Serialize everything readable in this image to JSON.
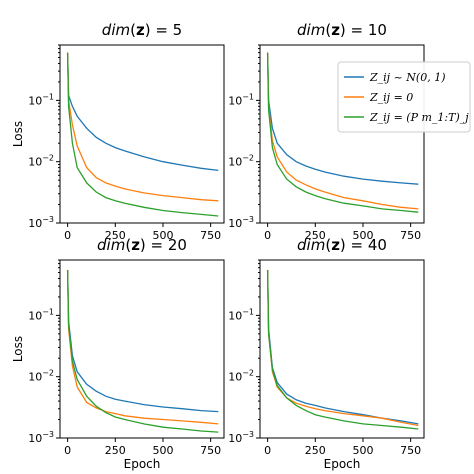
{
  "chart_data": [
    {
      "type": "line",
      "title": "dim(z) = 5",
      "xlabel": "",
      "ylabel": "Loss",
      "xlim": [
        -40,
        820
      ],
      "ylim": [
        0.001,
        0.8
      ],
      "yscale": "log",
      "xticks": [
        "0",
        "250",
        "500",
        "750"
      ],
      "yticks": [
        "10^-1",
        "10^-2",
        "10^-3"
      ],
      "series": [
        {
          "color": "#1f77b4",
          "x": [
            0,
            5,
            25,
            50,
            100,
            150,
            200,
            250,
            300,
            400,
            500,
            600,
            700,
            790
          ],
          "y": [
            0.6,
            0.12,
            0.08,
            0.055,
            0.035,
            0.025,
            0.02,
            0.017,
            0.015,
            0.012,
            0.01,
            0.0088,
            0.0078,
            0.0072
          ]
        },
        {
          "color": "#ff7f0e",
          "x": [
            0,
            5,
            25,
            50,
            100,
            150,
            200,
            250,
            300,
            400,
            500,
            600,
            700,
            790
          ],
          "y": [
            0.6,
            0.1,
            0.04,
            0.018,
            0.008,
            0.0055,
            0.0045,
            0.004,
            0.0036,
            0.0031,
            0.0028,
            0.0026,
            0.0024,
            0.0023
          ]
        },
        {
          "color": "#2ca02c",
          "x": [
            0,
            5,
            25,
            50,
            100,
            150,
            200,
            250,
            300,
            400,
            500,
            600,
            700,
            790
          ],
          "y": [
            0.6,
            0.08,
            0.02,
            0.008,
            0.0045,
            0.0032,
            0.0026,
            0.0023,
            0.0021,
            0.0018,
            0.0016,
            0.00148,
            0.00138,
            0.0013
          ]
        }
      ]
    },
    {
      "type": "line",
      "title": "dim(z) = 10",
      "xlabel": "",
      "ylabel": "",
      "xlim": [
        -40,
        820
      ],
      "ylim": [
        0.001,
        0.8
      ],
      "yscale": "log",
      "xticks": [
        "0",
        "250",
        "500",
        "750"
      ],
      "yticks": [
        "10^-1",
        "10^-2",
        "10^-3"
      ],
      "legend": {
        "position": "top-right",
        "entries": [
          "Z_ij ~ N(0, 1)",
          "Z_ij = 0",
          "Z_ij = (P m_1:T)_j"
        ]
      },
      "series": [
        {
          "color": "#1f77b4",
          "x": [
            0,
            5,
            25,
            50,
            100,
            150,
            200,
            250,
            300,
            400,
            500,
            600,
            700,
            790
          ],
          "y": [
            0.6,
            0.1,
            0.035,
            0.02,
            0.013,
            0.01,
            0.0085,
            0.0075,
            0.0068,
            0.0058,
            0.0052,
            0.0048,
            0.0045,
            0.0043
          ]
        },
        {
          "color": "#ff7f0e",
          "x": [
            0,
            5,
            25,
            50,
            100,
            150,
            200,
            250,
            300,
            400,
            500,
            600,
            700,
            790
          ],
          "y": [
            0.6,
            0.08,
            0.022,
            0.012,
            0.0068,
            0.005,
            0.0042,
            0.0036,
            0.0032,
            0.0026,
            0.0023,
            0.002,
            0.0018,
            0.0017
          ]
        },
        {
          "color": "#2ca02c",
          "x": [
            0,
            5,
            25,
            50,
            100,
            150,
            200,
            250,
            300,
            400,
            500,
            600,
            700,
            790
          ],
          "y": [
            0.6,
            0.07,
            0.017,
            0.009,
            0.0052,
            0.0039,
            0.0032,
            0.0028,
            0.0025,
            0.0021,
            0.0019,
            0.0017,
            0.0016,
            0.0015
          ]
        }
      ]
    },
    {
      "type": "line",
      "title": "dim(z) = 20",
      "xlabel": "Epoch",
      "ylabel": "Loss",
      "xlim": [
        -40,
        820
      ],
      "ylim": [
        0.001,
        0.8
      ],
      "yscale": "log",
      "xticks": [
        "0",
        "250",
        "500",
        "750"
      ],
      "yticks": [
        "10^-1",
        "10^-2",
        "10^-3"
      ],
      "series": [
        {
          "color": "#1f77b4",
          "x": [
            0,
            5,
            25,
            50,
            100,
            150,
            200,
            250,
            300,
            400,
            500,
            600,
            700,
            790
          ],
          "y": [
            0.55,
            0.08,
            0.022,
            0.012,
            0.0075,
            0.0058,
            0.0048,
            0.0043,
            0.004,
            0.0035,
            0.0032,
            0.003,
            0.0028,
            0.0027
          ]
        },
        {
          "color": "#ff7f0e",
          "x": [
            0,
            5,
            25,
            50,
            100,
            150,
            200,
            250,
            300,
            400,
            500,
            600,
            700,
            790
          ],
          "y": [
            0.55,
            0.06,
            0.015,
            0.0068,
            0.0038,
            0.0031,
            0.0027,
            0.0025,
            0.0023,
            0.0021,
            0.002,
            0.0019,
            0.0018,
            0.0017
          ]
        },
        {
          "color": "#2ca02c",
          "x": [
            0,
            5,
            25,
            50,
            100,
            150,
            200,
            250,
            300,
            400,
            500,
            600,
            700,
            790
          ],
          "y": [
            0.55,
            0.07,
            0.018,
            0.009,
            0.0048,
            0.0033,
            0.0026,
            0.0022,
            0.002,
            0.0017,
            0.0015,
            0.0014,
            0.0013,
            0.00125
          ]
        }
      ]
    },
    {
      "type": "line",
      "title": "dim(z) = 40",
      "xlabel": "Epoch",
      "ylabel": "",
      "xlim": [
        -40,
        820
      ],
      "ylim": [
        0.001,
        0.8
      ],
      "yscale": "log",
      "xticks": [
        "0",
        "250",
        "500",
        "750"
      ],
      "yticks": [
        "10^-1",
        "10^-2",
        "10^-3"
      ],
      "series": [
        {
          "color": "#1f77b4",
          "x": [
            0,
            5,
            25,
            50,
            100,
            150,
            200,
            250,
            300,
            400,
            500,
            600,
            700,
            790
          ],
          "y": [
            0.55,
            0.06,
            0.014,
            0.008,
            0.0052,
            0.0042,
            0.0037,
            0.0034,
            0.0031,
            0.0027,
            0.0024,
            0.0021,
            0.0019,
            0.0017
          ]
        },
        {
          "color": "#ff7f0e",
          "x": [
            0,
            5,
            25,
            50,
            100,
            150,
            200,
            250,
            300,
            400,
            500,
            600,
            700,
            790
          ],
          "y": [
            0.55,
            0.05,
            0.012,
            0.0068,
            0.0045,
            0.0037,
            0.0033,
            0.003,
            0.0028,
            0.0025,
            0.0023,
            0.0021,
            0.0018,
            0.0016
          ]
        },
        {
          "color": "#2ca02c",
          "x": [
            0,
            5,
            25,
            50,
            100,
            150,
            200,
            250,
            300,
            400,
            500,
            600,
            700,
            790
          ],
          "y": [
            0.55,
            0.05,
            0.013,
            0.0072,
            0.0045,
            0.0034,
            0.0028,
            0.0024,
            0.0022,
            0.0019,
            0.0017,
            0.0016,
            0.0015,
            0.0014
          ]
        }
      ]
    }
  ]
}
